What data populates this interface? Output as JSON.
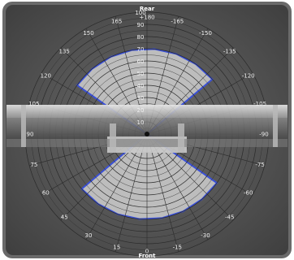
{
  "labels": {
    "top": "Rear",
    "bottom": "Front"
  },
  "angle_labels": [
    {
      "angle": 180,
      "text": "+180"
    },
    {
      "angle": 165,
      "text": "165"
    },
    {
      "angle": 150,
      "text": "150"
    },
    {
      "angle": 135,
      "text": "135"
    },
    {
      "angle": 120,
      "text": "120"
    },
    {
      "angle": 105,
      "text": "105"
    },
    {
      "angle": 90,
      "text": "90"
    },
    {
      "angle": 75,
      "text": "75"
    },
    {
      "angle": 60,
      "text": "60"
    },
    {
      "angle": 45,
      "text": "45"
    },
    {
      "angle": 30,
      "text": "30"
    },
    {
      "angle": 15,
      "text": "15"
    },
    {
      "angle": 0,
      "text": "0"
    },
    {
      "angle": -15,
      "text": "-15"
    },
    {
      "angle": -30,
      "text": "-30"
    },
    {
      "angle": -45,
      "text": "-45"
    },
    {
      "angle": -60,
      "text": "-60"
    },
    {
      "angle": -75,
      "text": "-75"
    },
    {
      "angle": -90,
      "text": "-90"
    },
    {
      "angle": -105,
      "text": "-105"
    },
    {
      "angle": -120,
      "text": "-120"
    },
    {
      "angle": -135,
      "text": "-135"
    },
    {
      "angle": -150,
      "text": "-150"
    },
    {
      "angle": -165,
      "text": "-165"
    }
  ],
  "radial_labels": [
    "10",
    "20",
    "30",
    "40",
    "50",
    "60",
    "70",
    "80",
    "90",
    "100"
  ],
  "coverage": {
    "rear_extent": 70,
    "front_extent": 70,
    "half_width_deg": 55
  },
  "colors": {
    "frame": "#6a6a6a",
    "background": "#555555",
    "grid": "#2a2a2a",
    "coverage_fill": "#bdbdbd",
    "coverage_edge": "#3a50d8",
    "bar": "#d6d6d6",
    "text": "#f0f0f0"
  }
}
